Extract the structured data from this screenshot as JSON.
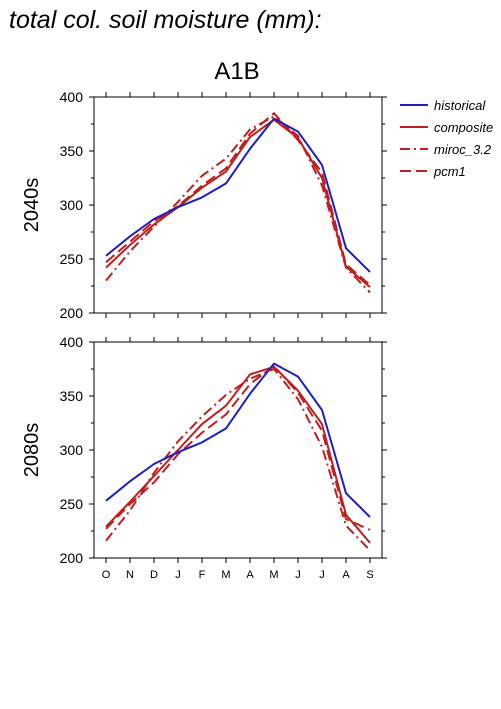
{
  "title": "total col. soil moisture (mm):",
  "scenario": "A1B",
  "legend": [
    {
      "name": "historical",
      "color": "#1f1fbf",
      "dash": "solid"
    },
    {
      "name": "composite",
      "color": "#bf1f1f",
      "dash": "solid"
    },
    {
      "name": "miroc_3.2",
      "color": "#bf1f1f",
      "dash": "dashdot"
    },
    {
      "name": "pcm1",
      "color": "#bf1f1f",
      "dash": "dashed"
    }
  ],
  "chart_data": [
    {
      "type": "line",
      "row_label": "2040s",
      "title": "A1B",
      "categories": [
        "O",
        "N",
        "D",
        "J",
        "F",
        "M",
        "A",
        "M",
        "J",
        "J",
        "A",
        "S"
      ],
      "ylim": [
        200,
        400
      ],
      "yticks": [
        "200",
        "250",
        "300",
        "350",
        "400"
      ],
      "series": [
        {
          "name": "historical",
          "values": [
            253,
            271,
            287,
            298,
            307,
            320,
            352,
            380,
            368,
            337,
            260,
            238
          ]
        },
        {
          "name": "composite",
          "values": [
            242,
            263,
            282,
            298,
            316,
            331,
            363,
            379,
            362,
            325,
            243,
            224
          ]
        },
        {
          "name": "miroc_3.2",
          "values": [
            230,
            257,
            280,
            303,
            327,
            343,
            370,
            382,
            364,
            318,
            242,
            219
          ]
        },
        {
          "name": "pcm1",
          "values": [
            247,
            266,
            285,
            299,
            318,
            334,
            366,
            385,
            360,
            330,
            245,
            226
          ]
        }
      ]
    },
    {
      "type": "line",
      "row_label": "2080s",
      "categories": [
        "O",
        "N",
        "D",
        "J",
        "F",
        "M",
        "A",
        "M",
        "J",
        "J",
        "A",
        "S"
      ],
      "ylim": [
        200,
        400
      ],
      "yticks": [
        "200",
        "250",
        "300",
        "350",
        "400"
      ],
      "series": [
        {
          "name": "historical",
          "values": [
            253,
            271,
            287,
            298,
            307,
            320,
            352,
            380,
            368,
            337,
            260,
            238
          ]
        },
        {
          "name": "composite",
          "values": [
            229,
            252,
            276,
            300,
            324,
            341,
            370,
            377,
            355,
            324,
            240,
            214
          ]
        },
        {
          "name": "miroc_3.2",
          "values": [
            216,
            244,
            279,
            308,
            331,
            351,
            366,
            375,
            347,
            303,
            230,
            207
          ]
        },
        {
          "name": "pcm1",
          "values": [
            227,
            250,
            270,
            296,
            316,
            333,
            361,
            378,
            353,
            318,
            236,
            226
          ]
        }
      ]
    }
  ]
}
